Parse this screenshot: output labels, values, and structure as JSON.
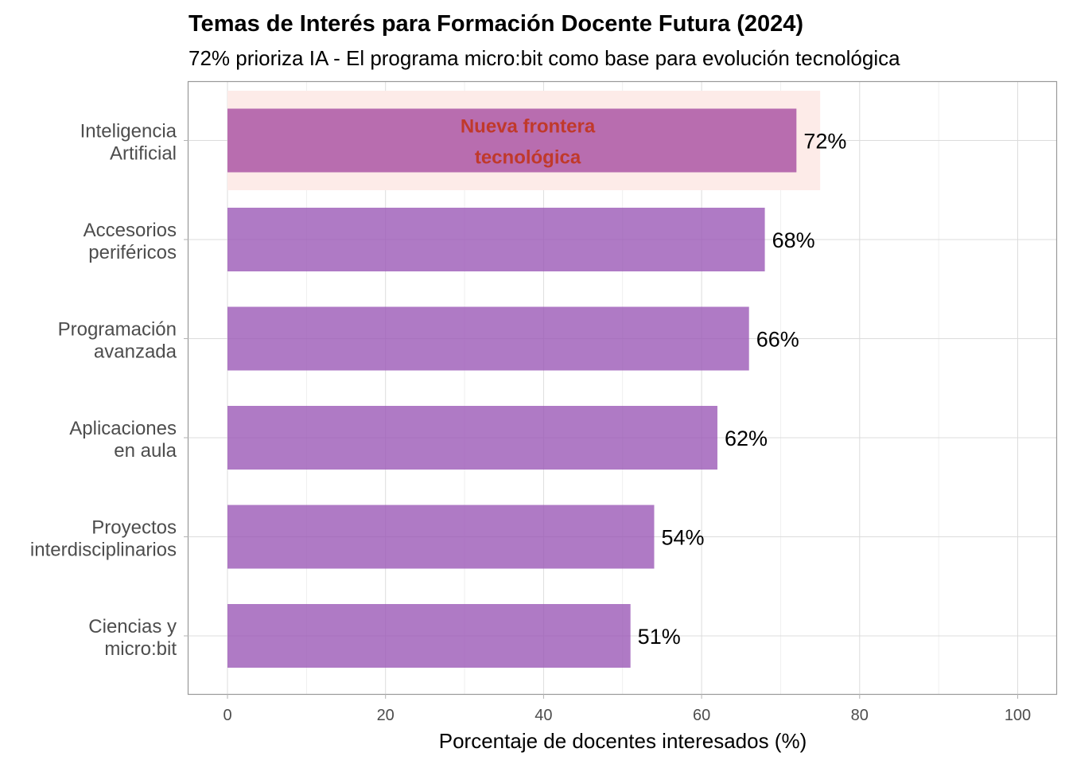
{
  "chart_data": {
    "type": "bar",
    "orientation": "horizontal",
    "title": "Temas de Interés para Formación Docente Futura (2024)",
    "subtitle": "72% prioriza IA - El programa micro:bit como base para evolución tecnológica",
    "xlabel": "Porcentaje de docentes interesados (%)",
    "ylabel": "",
    "xlim": [
      0,
      100
    ],
    "x_ticks": [
      0,
      20,
      40,
      60,
      80,
      100
    ],
    "grid": true,
    "categories": [
      [
        "Inteligencia",
        "Artificial"
      ],
      [
        "Accesorios",
        "periféricos"
      ],
      [
        "Programación",
        "avanzada"
      ],
      [
        "Aplicaciones",
        "en aula"
      ],
      [
        "Proyectos",
        "interdisciplinarios"
      ],
      [
        "Ciencias y",
        "micro:bit"
      ]
    ],
    "values": [
      72,
      68,
      66,
      62,
      54,
      51
    ],
    "value_labels": [
      "72%",
      "68%",
      "66%",
      "62%",
      "54%",
      "51%"
    ],
    "bar_color": "#9b59b6",
    "highlight": {
      "category_index": 0,
      "x_range": [
        0,
        75
      ],
      "fill_color": "#fdebe8",
      "bar_color": "#a0439c",
      "annotation_lines": [
        "Nueva frontera",
        "tecnológica"
      ],
      "annotation_x": 38,
      "annotation_color": "#c0392b"
    }
  }
}
